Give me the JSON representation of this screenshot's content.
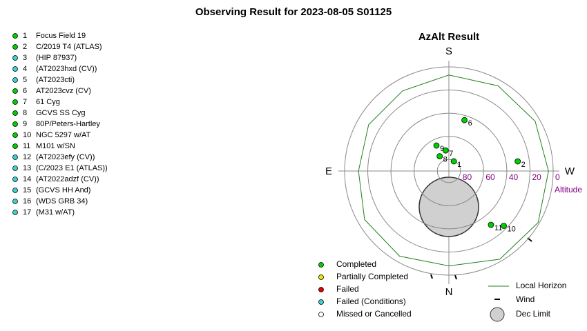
{
  "title": "Observing Result for 2023-08-05 S01125",
  "targets": [
    {
      "number": 1,
      "name": "Focus Field 19",
      "color": "#00d000",
      "az": 207,
      "alt": 80.6
    },
    {
      "number": 2,
      "name": "C/2019 T4 (ATLAS)",
      "color": "#00d000",
      "az": 262,
      "alt": 30
    },
    {
      "number": 3,
      "name": "(HIP 87937)",
      "color": "#40d0d0"
    },
    {
      "number": 4,
      "name": "(AT2023hxd (CV))",
      "color": "#40d0d0"
    },
    {
      "number": 5,
      "name": "(AT2023cti)",
      "color": "#40d0d0"
    },
    {
      "number": 6,
      "name": "AT2023cvz (CV)",
      "color": "#00d000",
      "az": 197,
      "alt": 44
    },
    {
      "number": 7,
      "name": "61 Cyg",
      "color": "#00d000",
      "az": 171,
      "alt": 72
    },
    {
      "number": 8,
      "name": "GCVS SS Cyg",
      "color": "#00d000",
      "az": 148,
      "alt": 75
    },
    {
      "number": 9,
      "name": "80P/Peters-Hartley",
      "color": "#00d000",
      "az": 154,
      "alt": 65.5
    },
    {
      "number": 10,
      "name": "NGC 5297 w/AT",
      "color": "#00d000",
      "az": 315,
      "alt": 23
    },
    {
      "number": 11,
      "name": "M101 w/SN",
      "color": "#00d000",
      "az": 322,
      "alt": 31
    },
    {
      "number": 12,
      "name": "(AT2023efy (CV))",
      "color": "#40d0d0"
    },
    {
      "number": 13,
      "name": "(C/2023 E1 (ATLAS))",
      "color": "#40d0d0"
    },
    {
      "number": 14,
      "name": "(AT2022adzf (CV))",
      "color": "#40d0d0"
    },
    {
      "number": 15,
      "name": "(GCVS HH And)",
      "color": "#40d0d0"
    },
    {
      "number": 16,
      "name": "(WDS GRB 34)",
      "color": "#40d0d0"
    },
    {
      "number": 17,
      "name": "(M31 w/AT)",
      "color": "#40d0d0"
    }
  ],
  "chart_data": {
    "type": "polar",
    "title": "AzAlt Result",
    "directions": {
      "S": "S",
      "E": "E",
      "W": "W",
      "N": "N"
    },
    "rlim": [
      90,
      0
    ],
    "rticks": [
      80,
      60,
      40,
      20,
      0
    ],
    "r_label": "Altitude",
    "horizon": {
      "name": "Local Horizon",
      "color": "#208020",
      "az": [
        0,
        30,
        60,
        90,
        120,
        150,
        180,
        210,
        240,
        270,
        300,
        330
      ],
      "alt": [
        8,
        5,
        6,
        12,
        10,
        10,
        7,
        5,
        4,
        4,
        1,
        2
      ]
    },
    "legend": [
      {
        "label": "Completed",
        "color": "#00d000"
      },
      {
        "label": "Partially Completed",
        "color": "#e8e800"
      },
      {
        "label": "Failed",
        "color": "#e00000"
      },
      {
        "label": "Failed (Conditions)",
        "color": "#40d0d0"
      },
      {
        "label": "Missed or Cancelled",
        "color": "#ffffff"
      }
    ],
    "wind_label": "Wind",
    "dec_limit_label": "Dec Limit"
  }
}
